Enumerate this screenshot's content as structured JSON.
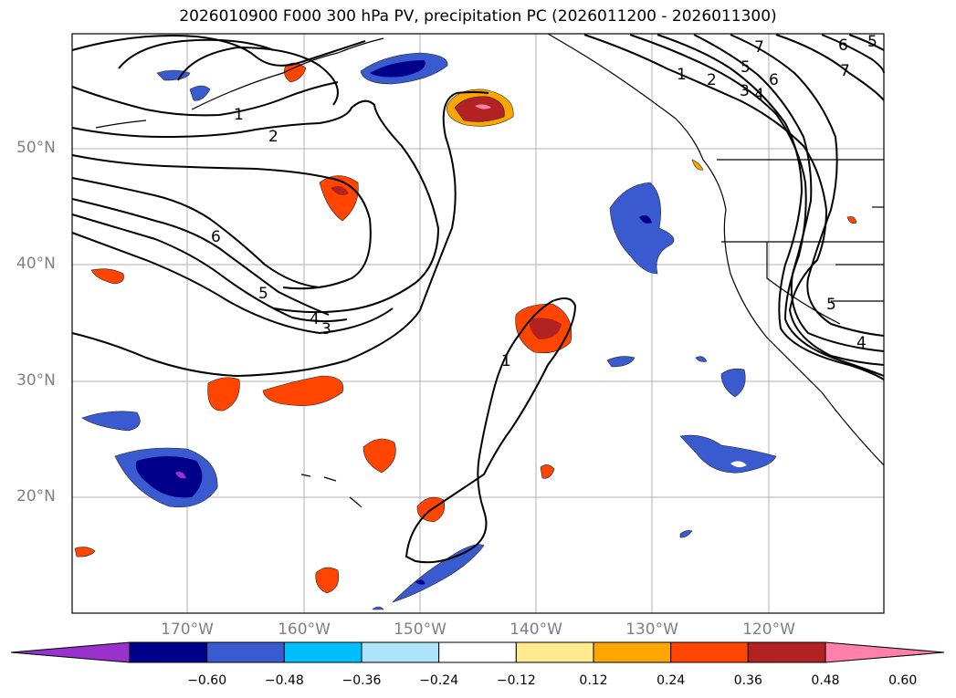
{
  "title": "2026010900 F000 300 hPa PV, precipitation PC (2026011200 - 2026011300)",
  "lat_labels": [
    "50°N",
    "40°N",
    "30°N",
    "20°N"
  ],
  "lon_labels": [
    "170°W",
    "160°W",
    "150°W",
    "140°W",
    "130°W",
    "120°W"
  ],
  "colorbar": {
    "colors": [
      "#9932cc",
      "#00008b",
      "#3a5bd0",
      "#00bfff",
      "#aee4fa",
      "#ffffff",
      "#ffe98f",
      "#ffa500",
      "#ff4500",
      "#b22222",
      "#ff80aa"
    ],
    "ticks": [
      "−0.60",
      "−0.48",
      "−0.36",
      "−0.24",
      "−0.12",
      "0.12",
      "0.24",
      "0.36",
      "0.48",
      "0.60"
    ]
  },
  "contour_labels": [
    "1",
    "2",
    "6",
    "5",
    "4",
    "3",
    "1",
    "1",
    "2",
    "3",
    "4",
    "5",
    "6",
    "7",
    "7",
    "6",
    "5",
    "4",
    "5"
  ],
  "colors": {
    "positive": "#ff4500",
    "negative": "#3a5bd0",
    "grid": "#b0b0b0"
  }
}
